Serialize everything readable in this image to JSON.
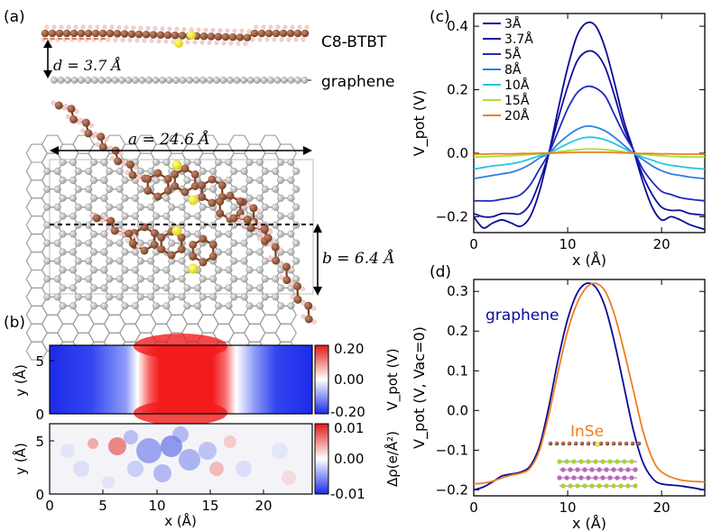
{
  "panels": {
    "a": {
      "label": "(a)",
      "molecule_label": "C8-BTBT",
      "substrate_label": "graphene",
      "d_label": "d = 3.7 Å",
      "a_label": "a = 24.6 Å",
      "b_label": "b = 6.4 Å"
    },
    "b": {
      "label": "(b)",
      "top": {
        "ylabel": "y (Å)",
        "yticks": [
          "0",
          "5"
        ],
        "colorbar_ticks": [
          "0.20",
          "0.00",
          "-0.20"
        ],
        "colorbar_label": "V_pot (V)",
        "colorbar_range": [
          -0.2,
          0.2
        ]
      },
      "bottom": {
        "ylabel": "y (Å)",
        "yticks": [
          "0",
          "5"
        ],
        "xlabel": "x (Å)",
        "xticks": [
          "0",
          "5",
          "10",
          "15",
          "20"
        ],
        "colorbar_ticks": [
          "0.01",
          "0.00",
          "-0.01"
        ],
        "colorbar_label": "Δρ(e/Å²)",
        "colorbar_range": [
          -0.01,
          0.01
        ]
      }
    },
    "c": {
      "label": "(c)"
    },
    "d": {
      "label": "(d)",
      "annotation_graphene": "graphene",
      "annotation_inse": "InSe"
    }
  },
  "chart_data": [
    {
      "type": "line",
      "panel": "c",
      "xlabel": "x (Å)",
      "ylabel": "V_pot (V)",
      "xlim": [
        0,
        24.6
      ],
      "ylim": [
        -0.25,
        0.44
      ],
      "xticks": [
        0,
        10,
        20
      ],
      "yticks": [
        -0.2,
        0.0,
        0.2,
        0.4
      ],
      "ytick_labels": [
        "−0.2",
        "0.0",
        "0.2",
        "0.4"
      ],
      "legend_position": "top-left",
      "x": [
        0,
        1,
        2,
        3,
        4,
        5,
        6,
        7,
        8,
        9,
        10,
        11,
        12,
        13,
        14,
        15,
        16,
        17,
        18,
        19,
        20,
        21,
        22,
        23,
        24.6
      ],
      "series": [
        {
          "name": "3Å",
          "color": "#0a0a96",
          "values": [
            -0.2,
            -0.235,
            -0.22,
            -0.21,
            -0.22,
            -0.23,
            -0.2,
            -0.12,
            0.0,
            0.14,
            0.27,
            0.37,
            0.41,
            0.4,
            0.33,
            0.22,
            0.1,
            0.01,
            -0.09,
            -0.17,
            -0.21,
            -0.2,
            -0.21,
            -0.225,
            -0.24
          ]
        },
        {
          "name": "3.7Å",
          "color": "#10109e",
          "values": [
            -0.19,
            -0.2,
            -0.2,
            -0.19,
            -0.19,
            -0.19,
            -0.16,
            -0.09,
            0.0,
            0.11,
            0.21,
            0.29,
            0.32,
            0.315,
            0.27,
            0.18,
            0.08,
            0.01,
            -0.07,
            -0.13,
            -0.17,
            -0.18,
            -0.18,
            -0.19,
            -0.195
          ]
        },
        {
          "name": "5Å",
          "color": "#1f2ac0",
          "values": [
            -0.15,
            -0.15,
            -0.15,
            -0.145,
            -0.14,
            -0.13,
            -0.1,
            -0.05,
            0.0,
            0.07,
            0.14,
            0.19,
            0.21,
            0.205,
            0.18,
            0.12,
            0.06,
            0.01,
            -0.05,
            -0.09,
            -0.12,
            -0.13,
            -0.14,
            -0.145,
            -0.15
          ]
        },
        {
          "name": "8Å",
          "color": "#2f7de6",
          "values": [
            -0.08,
            -0.075,
            -0.07,
            -0.065,
            -0.06,
            -0.05,
            -0.035,
            -0.015,
            0.0,
            0.03,
            0.055,
            0.075,
            0.085,
            0.082,
            0.07,
            0.05,
            0.025,
            0.0,
            -0.02,
            -0.04,
            -0.055,
            -0.065,
            -0.07,
            -0.075,
            -0.08
          ]
        },
        {
          "name": "10Å",
          "color": "#24c6e6",
          "values": [
            -0.05,
            -0.045,
            -0.04,
            -0.037,
            -0.033,
            -0.027,
            -0.018,
            -0.008,
            0.0,
            0.015,
            0.03,
            0.043,
            0.05,
            0.049,
            0.042,
            0.03,
            0.015,
            0.0,
            -0.012,
            -0.022,
            -0.032,
            -0.038,
            -0.042,
            -0.046,
            -0.05
          ]
        },
        {
          "name": "15Å",
          "color": "#a7e03a",
          "values": [
            -0.012,
            -0.011,
            -0.01,
            -0.009,
            -0.008,
            -0.006,
            -0.004,
            -0.002,
            0.0,
            0.004,
            0.008,
            0.011,
            0.013,
            0.013,
            0.011,
            0.008,
            0.004,
            0.0,
            -0.003,
            -0.006,
            -0.008,
            -0.01,
            -0.011,
            -0.012,
            -0.012
          ]
        },
        {
          "name": "20Å",
          "color": "#f07d1d",
          "values": [
            -0.003,
            -0.003,
            -0.002,
            -0.002,
            -0.002,
            -0.001,
            -0.001,
            0.0,
            0.0,
            0.001,
            0.002,
            0.003,
            0.003,
            0.003,
            0.003,
            0.002,
            0.001,
            0.0,
            -0.001,
            -0.001,
            -0.002,
            -0.002,
            -0.003,
            -0.003,
            -0.003
          ]
        }
      ]
    },
    {
      "type": "line",
      "panel": "d",
      "xlabel": "x (Å)",
      "ylabel": "V_pot (V, Vac=0)",
      "xlim": [
        0,
        24.6
      ],
      "ylim": [
        -0.215,
        0.33
      ],
      "xticks": [
        0,
        10,
        20
      ],
      "yticks": [
        -0.2,
        -0.1,
        0.0,
        0.1,
        0.2,
        0.3
      ],
      "ytick_labels": [
        "−0.2",
        "−0.1",
        "0.0",
        "0.1",
        "0.2",
        "0.3"
      ],
      "series": [
        {
          "name": "graphene",
          "color": "#0a0a96",
          "x": [
            0,
            1,
            2,
            3,
            4,
            5,
            6,
            7,
            8,
            9,
            10,
            11,
            12,
            13,
            14,
            15,
            16,
            17,
            18,
            19,
            20,
            22,
            24.6
          ],
          "values": [
            -0.2,
            -0.193,
            -0.18,
            -0.165,
            -0.16,
            -0.155,
            -0.14,
            -0.09,
            0.01,
            0.13,
            0.23,
            0.295,
            0.32,
            0.31,
            0.26,
            0.17,
            0.06,
            -0.05,
            -0.13,
            -0.17,
            -0.185,
            -0.19,
            -0.2
          ]
        },
        {
          "name": "InSe",
          "color": "#f07d1d",
          "x": [
            0,
            1,
            2,
            3,
            4,
            5,
            6,
            7,
            8,
            9,
            10,
            11,
            12,
            13,
            14,
            15,
            16,
            17,
            18,
            19,
            20,
            22,
            24.6
          ],
          "values": [
            -0.185,
            -0.183,
            -0.178,
            -0.17,
            -0.163,
            -0.158,
            -0.145,
            -0.1,
            -0.01,
            0.1,
            0.2,
            0.27,
            0.31,
            0.32,
            0.3,
            0.24,
            0.15,
            0.05,
            -0.05,
            -0.12,
            -0.155,
            -0.175,
            -0.18
          ]
        }
      ]
    }
  ]
}
